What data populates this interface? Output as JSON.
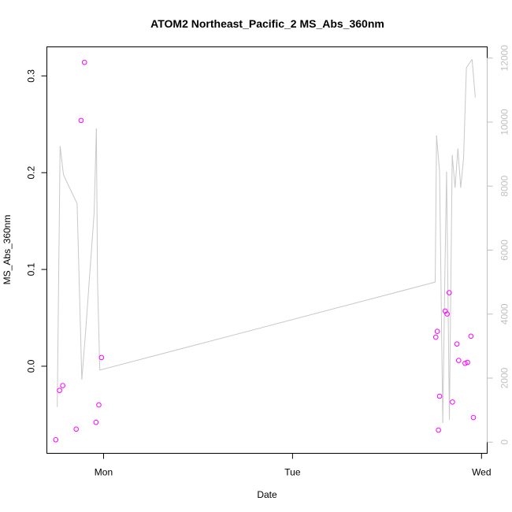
{
  "chart_data": {
    "type": "scatter",
    "title": "ATOM2 Northeast_Pacific_2 MS_Abs_360nm",
    "xlabel": "Date",
    "ylabel": "MS_Abs_360nm",
    "x_ticks": [
      {
        "label": "Mon",
        "value": 1.0
      },
      {
        "label": "Tue",
        "value": 2.0
      },
      {
        "label": "Wed",
        "value": 3.0
      }
    ],
    "xlim": [
      0.7,
      3.03
    ],
    "ylim": [
      -0.09,
      0.33
    ],
    "y_ticks": [
      0.0,
      0.1,
      0.2,
      0.3
    ],
    "y2lim": [
      -350,
      12350
    ],
    "y2_ticks": [
      0,
      2000,
      4000,
      6000,
      8000,
      10000,
      12000
    ],
    "grid": false,
    "colors": {
      "points": "#ff00ff",
      "line": "#c8c8c8",
      "axis": "#000000",
      "axis2": "#c0c0c0"
    },
    "series": [
      {
        "type": "scatter",
        "axis": "left",
        "x": [
          0.747,
          0.767,
          0.784,
          0.855,
          0.881,
          0.899,
          0.96,
          0.975,
          0.989,
          2.758,
          2.766,
          2.772,
          2.778,
          2.808,
          2.818,
          2.829,
          2.846,
          2.87,
          2.879,
          2.913,
          2.926,
          2.944,
          2.957
        ],
        "y": [
          -0.076,
          -0.025,
          -0.02,
          -0.065,
          0.254,
          0.314,
          -0.058,
          -0.04,
          0.009,
          0.03,
          0.036,
          -0.066,
          -0.031,
          0.057,
          0.054,
          0.076,
          -0.037,
          0.023,
          0.006,
          0.003,
          0.004,
          0.031,
          -0.053
        ]
      },
      {
        "type": "line",
        "axis": "right",
        "x": [
          0.755,
          0.77,
          0.788,
          0.86,
          0.885,
          0.905,
          0.95,
          0.962,
          0.968,
          0.98,
          2.755,
          2.762,
          2.778,
          2.795,
          2.805,
          2.815,
          2.83,
          2.845,
          2.86,
          2.875,
          2.89,
          2.905,
          2.92,
          2.95,
          2.967
        ],
        "y": [
          1100,
          9250,
          8350,
          7450,
          1950,
          3450,
          7150,
          9800,
          5050,
          2250,
          5000,
          9580,
          8450,
          600,
          4800,
          8450,
          700,
          8970,
          7950,
          9170,
          7950,
          8870,
          11700,
          11960,
          10770
        ]
      }
    ]
  }
}
